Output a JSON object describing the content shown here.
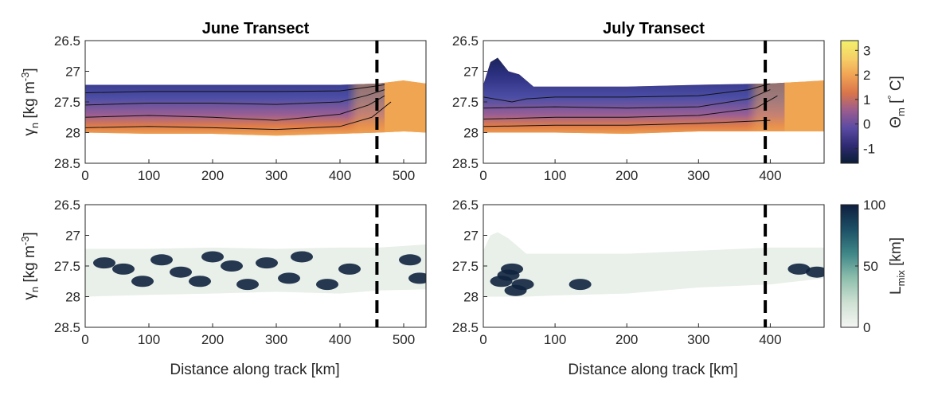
{
  "chart_data": [
    {
      "type": "heatmap",
      "title": "June Transect",
      "xlabel": "",
      "ylabel": "γn [kg m-3]",
      "xlim": [
        0,
        535
      ],
      "ylim": [
        26.5,
        28.5
      ],
      "y_reversed": true,
      "x_ticks": [
        "0",
        "100",
        "200",
        "300",
        "400",
        "500"
      ],
      "y_ticks": [
        "26.5",
        "27",
        "27.5",
        "28",
        "28.5"
      ],
      "variable": "theta",
      "coverage": [
        [
          0,
          27.22,
          28.0
        ],
        [
          100,
          27.22,
          28.02
        ],
        [
          200,
          27.22,
          28.02
        ],
        [
          300,
          27.22,
          28.05
        ],
        [
          400,
          27.22,
          28.02
        ],
        [
          460,
          27.2,
          28.0
        ],
        [
          500,
          27.15,
          27.98
        ],
        [
          535,
          27.2,
          28.0
        ]
      ],
      "contours": [
        [
          [
            0,
            27.35
          ],
          [
            100,
            27.33
          ],
          [
            200,
            27.33
          ],
          [
            300,
            27.33
          ],
          [
            400,
            27.32
          ],
          [
            450,
            27.25
          ],
          [
            470,
            27.22
          ]
        ],
        [
          [
            0,
            27.55
          ],
          [
            100,
            27.52
          ],
          [
            200,
            27.52
          ],
          [
            300,
            27.54
          ],
          [
            400,
            27.5
          ],
          [
            440,
            27.4
          ],
          [
            470,
            27.3
          ]
        ],
        [
          [
            0,
            27.75
          ],
          [
            100,
            27.72
          ],
          [
            200,
            27.75
          ],
          [
            300,
            27.8
          ],
          [
            400,
            27.7
          ],
          [
            445,
            27.55
          ],
          [
            470,
            27.4
          ]
        ],
        [
          [
            0,
            27.92
          ],
          [
            100,
            27.9
          ],
          [
            200,
            27.92
          ],
          [
            300,
            27.95
          ],
          [
            400,
            27.9
          ],
          [
            450,
            27.75
          ],
          [
            480,
            27.5
          ]
        ]
      ],
      "dashed_line_x": 458
    },
    {
      "type": "heatmap",
      "title": "July Transect",
      "xlabel": "",
      "ylabel": "",
      "xlim": [
        0,
        475
      ],
      "ylim": [
        26.5,
        28.5
      ],
      "y_reversed": true,
      "x_ticks": [
        "0",
        "100",
        "200",
        "300",
        "400"
      ],
      "y_ticks": [
        "26.5",
        "27",
        "27.5",
        "28",
        "28.5"
      ],
      "variable": "theta",
      "coverage": [
        [
          0,
          27.22,
          28.0
        ],
        [
          10,
          26.85,
          28.0
        ],
        [
          20,
          26.78,
          28.0
        ],
        [
          35,
          27.0,
          28.0
        ],
        [
          50,
          27.05,
          28.0
        ],
        [
          70,
          27.25,
          28.0
        ],
        [
          100,
          27.25,
          28.0
        ],
        [
          200,
          27.25,
          28.02
        ],
        [
          300,
          27.22,
          27.98
        ],
        [
          400,
          27.2,
          27.98
        ],
        [
          475,
          27.15,
          27.98
        ]
      ],
      "contours": [
        [
          [
            0,
            27.42
          ],
          [
            40,
            27.5
          ],
          [
            60,
            27.45
          ],
          [
            100,
            27.42
          ],
          [
            200,
            27.42
          ],
          [
            300,
            27.4
          ],
          [
            370,
            27.3
          ],
          [
            400,
            27.2
          ]
        ],
        [
          [
            0,
            27.6
          ],
          [
            100,
            27.58
          ],
          [
            200,
            27.6
          ],
          [
            300,
            27.58
          ],
          [
            370,
            27.45
          ],
          [
            400,
            27.3
          ]
        ],
        [
          [
            0,
            27.78
          ],
          [
            100,
            27.75
          ],
          [
            200,
            27.75
          ],
          [
            300,
            27.72
          ],
          [
            380,
            27.6
          ],
          [
            410,
            27.4
          ]
        ],
        [
          [
            0,
            27.9
          ],
          [
            100,
            27.88
          ],
          [
            200,
            27.88
          ],
          [
            300,
            27.85
          ],
          [
            400,
            27.8
          ]
        ]
      ],
      "dashed_line_x": 393
    },
    {
      "type": "heatmap",
      "title": "",
      "xlabel": "Distance along track [km]",
      "ylabel": "γn [kg m-3]",
      "xlim": [
        0,
        535
      ],
      "ylim": [
        26.5,
        28.5
      ],
      "y_reversed": true,
      "x_ticks": [
        "0",
        "100",
        "200",
        "300",
        "400",
        "500"
      ],
      "y_ticks": [
        "26.5",
        "27",
        "27.5",
        "28",
        "28.5"
      ],
      "variable": "lmix",
      "coverage": [
        [
          0,
          27.22,
          28.0
        ],
        [
          100,
          27.22,
          27.97
        ],
        [
          200,
          27.2,
          27.95
        ],
        [
          300,
          27.22,
          27.92
        ],
        [
          400,
          27.2,
          27.95
        ],
        [
          460,
          27.2,
          27.9
        ],
        [
          535,
          27.15,
          27.88
        ]
      ],
      "high_mix_blobs": [
        [
          30,
          27.45
        ],
        [
          60,
          27.55
        ],
        [
          90,
          27.75
        ],
        [
          120,
          27.4
        ],
        [
          150,
          27.6
        ],
        [
          180,
          27.75
        ],
        [
          200,
          27.35
        ],
        [
          230,
          27.5
        ],
        [
          255,
          27.8
        ],
        [
          285,
          27.45
        ],
        [
          320,
          27.7
        ],
        [
          340,
          27.35
        ],
        [
          380,
          27.8
        ],
        [
          415,
          27.55
        ],
        [
          510,
          27.4
        ],
        [
          525,
          27.7
        ]
      ],
      "dashed_line_x": 458
    },
    {
      "type": "heatmap",
      "title": "",
      "xlabel": "Distance along track [km]",
      "ylabel": "",
      "xlim": [
        0,
        475
      ],
      "ylim": [
        26.5,
        28.5
      ],
      "y_reversed": true,
      "x_ticks": [
        "0",
        "100",
        "200",
        "300",
        "400"
      ],
      "y_ticks": [
        "26.5",
        "27",
        "27.5",
        "28",
        "28.5"
      ],
      "variable": "lmix",
      "coverage": [
        [
          0,
          27.25,
          28.0
        ],
        [
          10,
          27.0,
          28.0
        ],
        [
          20,
          26.95,
          28.0
        ],
        [
          35,
          27.05,
          28.0
        ],
        [
          60,
          27.3,
          28.0
        ],
        [
          100,
          27.3,
          27.98
        ],
        [
          200,
          27.3,
          27.95
        ],
        [
          300,
          27.25,
          27.85
        ],
        [
          400,
          27.2,
          27.8
        ],
        [
          475,
          27.2,
          27.7
        ]
      ],
      "high_mix_blobs": [
        [
          25,
          27.75
        ],
        [
          40,
          27.55
        ],
        [
          55,
          27.8
        ],
        [
          45,
          27.9
        ],
        [
          35,
          27.65
        ],
        [
          135,
          27.8
        ],
        [
          440,
          27.55
        ],
        [
          465,
          27.6
        ]
      ],
      "dashed_line_x": 393
    }
  ],
  "colorbars": [
    {
      "label": "Θm [°C]",
      "ticks": [
        "3",
        "2",
        "1",
        "0",
        "-1"
      ],
      "range": [
        -1.6,
        3.4
      ],
      "colors": [
        "#0b1d35",
        "#2e2a72",
        "#5a4aa3",
        "#9a5c8f",
        "#d8754a",
        "#f1a254",
        "#f6d067",
        "#f2f16b"
      ]
    },
    {
      "label": "Lmix [km]",
      "ticks": [
        "100",
        "50",
        "0"
      ],
      "range": [
        0,
        100
      ],
      "colors": [
        "#f4f5f3",
        "#cfe1d3",
        "#8ebfad",
        "#3f8788",
        "#1c4f66",
        "#0f1e3e"
      ]
    }
  ]
}
